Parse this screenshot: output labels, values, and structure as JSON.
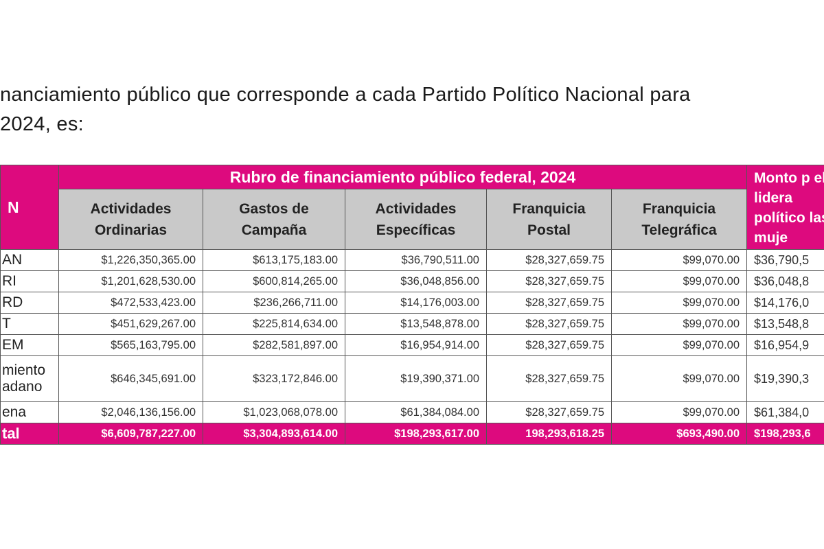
{
  "text": {
    "line1": "nanciamiento público que corresponde a cada Partido Político Nacional para",
    "line2": "2024, es:"
  },
  "colors": {
    "accent": "#dd0a7e",
    "subheader": "#c9c9c9"
  },
  "table": {
    "party_header": "N",
    "group_header": "Rubro de financiamiento público federal, 2024",
    "extra_header": "Monto p el lidera político las muje",
    "columns": [
      "Actividades Ordinarias",
      "Gastos de Campaña",
      "Actividades Específicas",
      "Franquicia Postal",
      "Franquicia Telegráfica"
    ],
    "rows": [
      {
        "party": "AN",
        "values": [
          "$1,226,350,365.00",
          "$613,175,183.00",
          "$36,790,511.00",
          "$28,327,659.75",
          "$99,070.00",
          "$36,790,5"
        ]
      },
      {
        "party": "RI",
        "values": [
          "$1,201,628,530.00",
          "$600,814,265.00",
          "$36,048,856.00",
          "$28,327,659.75",
          "$99,070.00",
          "$36,048,8"
        ]
      },
      {
        "party": "RD",
        "values": [
          "$472,533,423.00",
          "$236,266,711.00",
          "$14,176,003.00",
          "$28,327,659.75",
          "$99,070.00",
          "$14,176,0"
        ]
      },
      {
        "party": "T",
        "values": [
          "$451,629,267.00",
          "$225,814,634.00",
          "$13,548,878.00",
          "$28,327,659.75",
          "$99,070.00",
          "$13,548,8"
        ]
      },
      {
        "party": "EM",
        "values": [
          "$565,163,795.00",
          "$282,581,897.00",
          "$16,954,914.00",
          "$28,327,659.75",
          "$99,070.00",
          "$16,954,9"
        ]
      },
      {
        "party": "miento adano",
        "values": [
          "$646,345,691.00",
          "$323,172,846.00",
          "$19,390,371.00",
          "$28,327,659.75",
          "$99,070.00",
          "$19,390,3"
        ]
      },
      {
        "party": "ena",
        "values": [
          "$2,046,136,156.00",
          "$1,023,068,078.00",
          "$61,384,084.00",
          "$28,327,659.75",
          "$99,070.00",
          "$61,384,0"
        ]
      }
    ],
    "total": {
      "label": "tal",
      "values": [
        "$6,609,787,227.00",
        "$3,304,893,614.00",
        "$198,293,617.00",
        "198,293,618.25",
        "$693,490.00",
        "$198,293,6"
      ]
    }
  }
}
